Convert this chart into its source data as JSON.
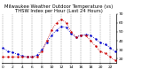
{
  "title": "Milwaukee Weather Outdoor Temperature (vs) THSW Index per Hour (Last 24 Hours)",
  "blue_values": [
    32,
    28,
    27,
    25,
    23,
    22,
    22,
    24,
    30,
    38,
    46,
    52,
    56,
    55,
    48,
    44,
    46,
    47,
    46,
    42,
    38,
    36,
    32,
    28
  ],
  "red_values": [
    22,
    22,
    22,
    22,
    22,
    22,
    22,
    22,
    28,
    40,
    52,
    60,
    64,
    60,
    50,
    44,
    46,
    46,
    40,
    34,
    28,
    26,
    22,
    18
  ],
  "ylim": [
    15,
    70
  ],
  "ytick_values": [
    20,
    30,
    40,
    50,
    60,
    70
  ],
  "ytick_labels": [
    "20",
    "30",
    "40",
    "50",
    "60",
    "70"
  ],
  "hours": 24,
  "grid_color": "#999999",
  "blue_color": "#0000cc",
  "red_color": "#cc0000",
  "black_color": "#000000",
  "bg_color": "#ffffff",
  "title_fontsize": 3.8,
  "tick_fontsize": 3.2,
  "grid_every": 2
}
